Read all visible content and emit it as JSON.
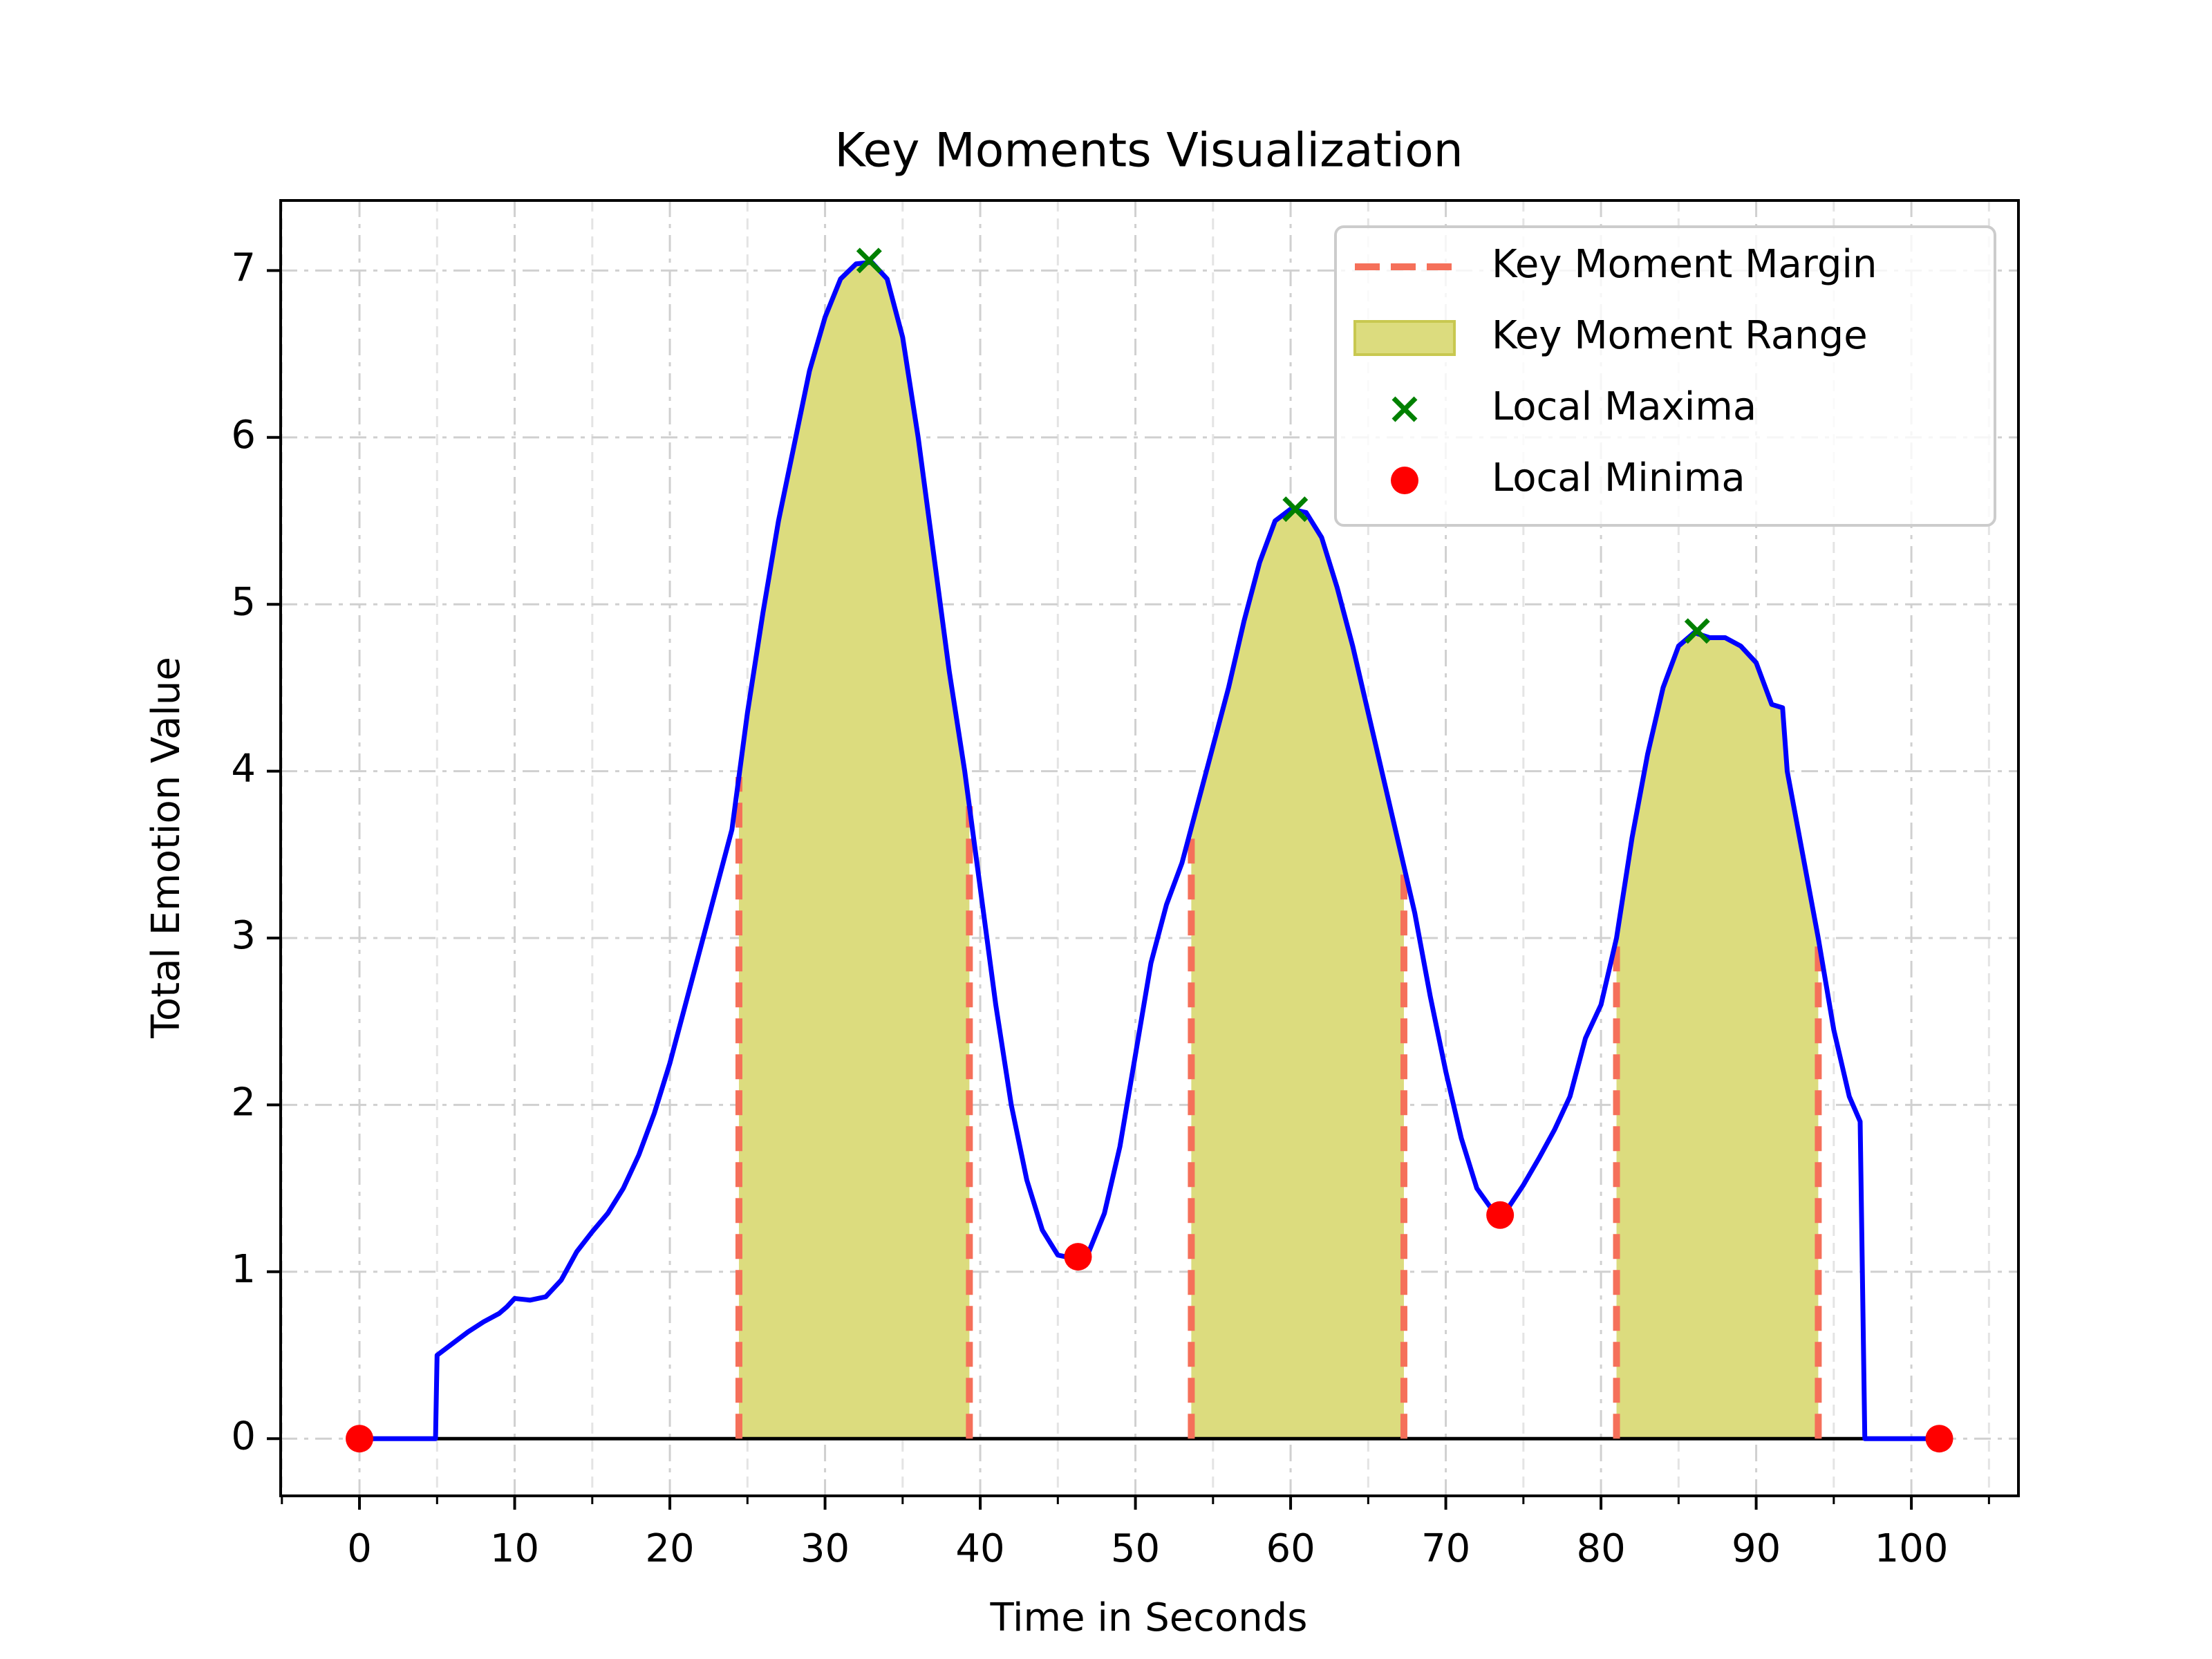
{
  "chart_data": {
    "type": "line",
    "title": "Key Moments Visualization",
    "xlabel": "Time in Seconds",
    "ylabel": "Total Emotion Value",
    "color": "#0000ff",
    "x": [
      0,
      4.9,
      5,
      6,
      7,
      8,
      9,
      9.5,
      10,
      11,
      12,
      13,
      14,
      15,
      16,
      17,
      18,
      19,
      20,
      21,
      22,
      23,
      24,
      25,
      26,
      27,
      28,
      29,
      30,
      31,
      32,
      33,
      34,
      35,
      36,
      37,
      38,
      39,
      40,
      41,
      42,
      43,
      44,
      45,
      46,
      47,
      48,
      49,
      50,
      51,
      52,
      53,
      54,
      55,
      56,
      57,
      58,
      59,
      60,
      61,
      62,
      63,
      64,
      65,
      66,
      67,
      68,
      69,
      70,
      71,
      72,
      73,
      74,
      75,
      76,
      77,
      78,
      79,
      80,
      81,
      82,
      83,
      84,
      85,
      86,
      87,
      88,
      89,
      90,
      91,
      91.7,
      92,
      93,
      94,
      95,
      96,
      96.7,
      97,
      101.8
    ],
    "values": [
      0,
      0,
      0.5,
      0.57,
      0.64,
      0.7,
      0.75,
      0.79,
      0.84,
      0.83,
      0.85,
      0.95,
      1.12,
      1.24,
      1.35,
      1.5,
      1.7,
      1.95,
      2.25,
      2.6,
      2.95,
      3.3,
      3.65,
      4.35,
      4.95,
      5.5,
      5.95,
      6.4,
      6.72,
      6.95,
      7.04,
      7.05,
      6.95,
      6.6,
      6.0,
      5.3,
      4.6,
      4.0,
      3.3,
      2.6,
      2.0,
      1.55,
      1.25,
      1.1,
      1.08,
      1.12,
      1.35,
      1.75,
      2.3,
      2.85,
      3.2,
      3.45,
      3.8,
      4.15,
      4.5,
      4.9,
      5.25,
      5.5,
      5.57,
      5.55,
      5.4,
      5.1,
      4.75,
      4.35,
      3.95,
      3.55,
      3.15,
      2.65,
      2.2,
      1.8,
      1.5,
      1.37,
      1.38,
      1.52,
      1.68,
      1.85,
      2.05,
      2.4,
      2.6,
      3.0,
      3.6,
      4.1,
      4.5,
      4.75,
      4.83,
      4.8,
      4.8,
      4.75,
      4.65,
      4.4,
      4.38,
      4.0,
      3.5,
      3.0,
      2.45,
      2.05,
      1.9,
      0,
      0
    ],
    "margin": {
      "name": "Key Moment Margin",
      "color": "#f5705a"
    },
    "ranges": {
      "name": "Key Moment Range",
      "color": "#dcdc7e",
      "edge": "#c8c850",
      "bounds": [
        [
          24.45,
          39.3
        ],
        [
          53.6,
          67.3
        ],
        [
          81.0,
          94.0
        ]
      ]
    },
    "maxima": {
      "name": "Local Maxima",
      "color": "#008000",
      "x": [
        32.84,
        60.3,
        86.2
      ],
      "y": [
        7.06,
        5.57,
        4.84
      ]
    },
    "minima": {
      "name": "Local Minima",
      "color": "#ff0000",
      "x": [
        0,
        46.3,
        73.5,
        101.8
      ],
      "y": [
        0,
        1.09,
        1.34,
        0
      ]
    },
    "xlim": [
      -5.08,
      106.9
    ],
    "ylim": [
      -0.343,
      7.42
    ],
    "xticks": [
      0,
      10,
      20,
      30,
      40,
      50,
      60,
      70,
      80,
      90,
      100
    ],
    "xticks_minor": [
      -5,
      5,
      15,
      25,
      35,
      45,
      55,
      65,
      75,
      85,
      95,
      105
    ],
    "yticks": [
      0,
      1,
      2,
      3,
      4,
      5,
      6,
      7
    ],
    "grid": true,
    "legend": "upper right"
  }
}
